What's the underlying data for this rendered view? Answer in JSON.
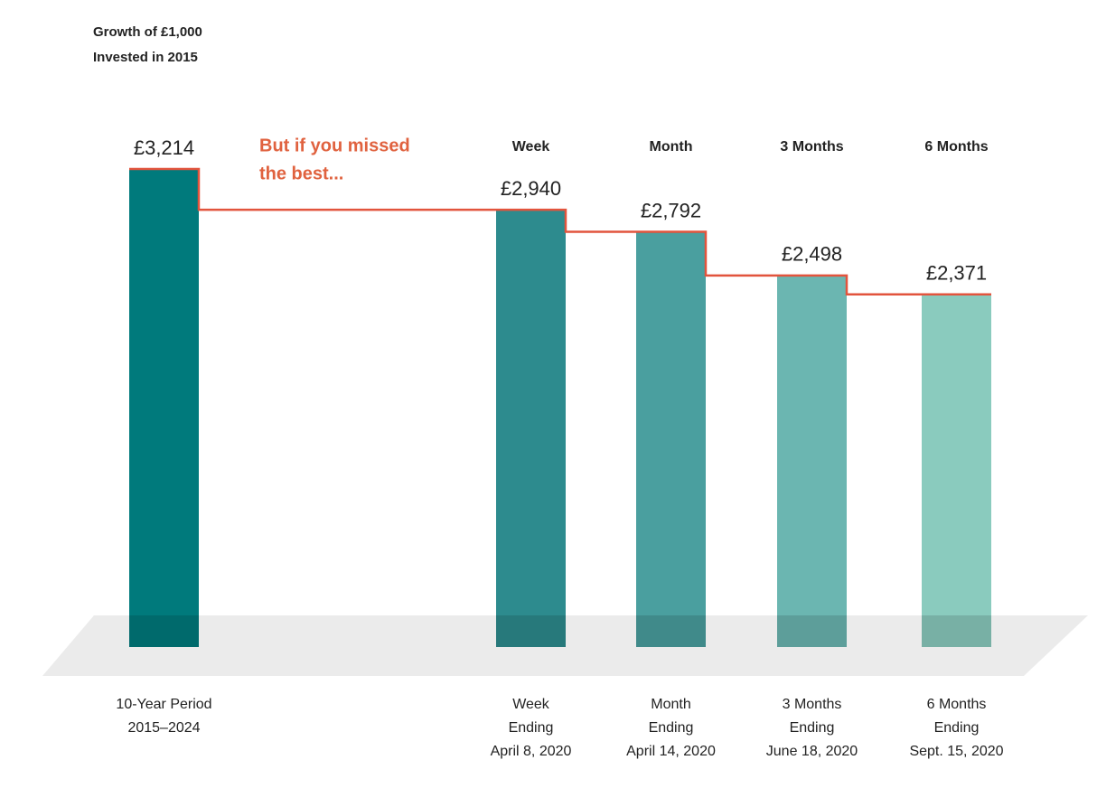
{
  "chart_data": {
    "type": "bar",
    "title": [
      "Growth of £1,000",
      "Invested in 2015"
    ],
    "annotation": [
      "But if you missed",
      "the best..."
    ],
    "headers": [
      "Week",
      "Month",
      "3 Months",
      "6 Months"
    ],
    "categories": [
      [
        "10-Year Period",
        "2015–2024"
      ],
      [
        "Week",
        "Ending",
        "April 8, 2020"
      ],
      [
        "Month",
        "Ending",
        "April 14, 2020"
      ],
      [
        "3 Months",
        "Ending",
        "June 18, 2020"
      ],
      [
        "6 Months",
        "Ending",
        "Sept. 15, 2020"
      ]
    ],
    "values": [
      3214,
      2940,
      2792,
      2498,
      2371
    ],
    "value_labels": [
      "£3,214",
      "£2,940",
      "£2,792",
      "£2,498",
      "£2,371"
    ],
    "colors": [
      "#007a7c",
      "#2d8b8e",
      "#4a9f9f",
      "#6bb6b1",
      "#8acbbe"
    ],
    "line_color": "#e2543d"
  }
}
